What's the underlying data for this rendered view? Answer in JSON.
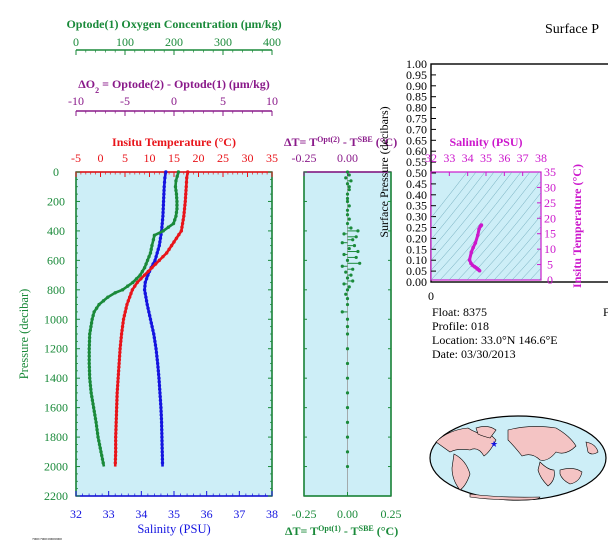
{
  "colors": {
    "green": "#1a8a3a",
    "purple": "#8a1a8a",
    "red": "#e8141a",
    "blue": "#1414e0",
    "magenta": "#cc18cc",
    "panel": "#cdeef7",
    "black": "#000000"
  },
  "header": {
    "title_partial": "Surface P"
  },
  "float_info": {
    "float": "Float:  8375",
    "profile": "Profile:  018",
    "location": "Location:  33.0°N  146.6°E",
    "date": "Date:  03/30/2013",
    "cut_letter": "F"
  },
  "footer": {
    "tiny_label": "7000/7900/00000000"
  },
  "chart_data": [
    {
      "type": "line",
      "panel": "main-profile",
      "ylabel": "Pressure (decibar)",
      "ylim": [
        2200,
        0
      ],
      "y_ticks": [
        "0",
        "200",
        "400",
        "600",
        "800",
        "1000",
        "1200",
        "1400",
        "1600",
        "1800",
        "2000",
        "2200"
      ],
      "axes": {
        "oxygen": {
          "label": "Optode(1) Oxygen Concentration (μm/kg)",
          "ticks": [
            "0",
            "100",
            "200",
            "300",
            "400"
          ],
          "range": [
            0,
            400
          ]
        },
        "delta_o2": {
          "label_parts": [
            "ΔO",
            "2",
            " = Optode(2) - Optode(1)     (μm/kg)"
          ],
          "ticks": [
            "-10",
            "-5",
            "0",
            "5",
            "10"
          ],
          "range": [
            -10,
            10
          ]
        },
        "temperature": {
          "label": "Insitu Temperature (°C)",
          "ticks": [
            "-5",
            "0",
            "5",
            "10",
            "15",
            "20",
            "25",
            "30",
            "35"
          ],
          "range": [
            -5,
            35
          ]
        },
        "salinity": {
          "label": "Salinity (PSU)",
          "ticks": [
            "32",
            "33",
            "34",
            "35",
            "36",
            "37",
            "38"
          ],
          "range": [
            32,
            38
          ]
        }
      },
      "series": [
        {
          "color_key": "blue",
          "axis": "salinity",
          "y": [
            0,
            40,
            100,
            200,
            300,
            400,
            500,
            600,
            650,
            700,
            750,
            800,
            900,
            1000,
            1100,
            1200,
            1300,
            1400,
            1500,
            1600,
            1700,
            1800,
            1900,
            2000
          ],
          "x": [
            34.75,
            34.72,
            34.7,
            34.68,
            34.66,
            34.62,
            34.55,
            34.42,
            34.3,
            34.2,
            34.12,
            34.1,
            34.18,
            34.28,
            34.38,
            34.45,
            34.5,
            34.54,
            34.57,
            34.6,
            34.62,
            34.63,
            34.64,
            34.65
          ]
        },
        {
          "color_key": "red",
          "axis": "temperature",
          "y": [
            0,
            40,
            100,
            200,
            300,
            400,
            450,
            500,
            550,
            600,
            650,
            700,
            750,
            800,
            900,
            1000,
            1100,
            1200,
            1300,
            1400,
            1500,
            1600,
            1700,
            1800,
            1900,
            2000
          ],
          "x": [
            17.8,
            17.6,
            17.5,
            17.3,
            17.0,
            16.5,
            15.5,
            14.5,
            13.5,
            12.0,
            10.5,
            9.0,
            7.5,
            6.5,
            5.4,
            4.7,
            4.3,
            4.0,
            3.8,
            3.6,
            3.4,
            3.3,
            3.2,
            3.1,
            3.1,
            3.0
          ]
        },
        {
          "color_key": "green",
          "axis": "oxygen",
          "y": [
            0,
            60,
            100,
            150,
            200,
            250,
            300,
            350,
            400,
            430,
            460,
            500,
            550,
            600,
            650,
            700,
            750,
            800,
            820,
            850,
            900,
            950,
            1000,
            1100,
            1200,
            1300,
            1400,
            1500,
            1600,
            1700,
            1800,
            1900,
            2000
          ],
          "x": [
            209,
            204,
            203,
            205,
            206,
            206,
            204,
            199,
            178,
            160,
            158,
            155,
            152,
            146,
            140,
            131,
            116,
            95,
            80,
            65,
            47,
            37,
            33,
            28,
            27,
            27,
            28,
            31,
            36,
            41,
            45,
            51,
            57
          ]
        }
      ]
    },
    {
      "type": "scatter",
      "panel": "delta-t",
      "title_parts": [
        "ΔT= T",
        "Opt(2)",
        " - T",
        "SBE",
        " (°C)"
      ],
      "xlabel_parts": [
        "ΔT= T",
        "Opt(1)",
        " - T",
        "SBE",
        "  (°C)"
      ],
      "xlim": [
        -0.25,
        0.25
      ],
      "x_ticks_top": [
        "-0.25",
        "0.00"
      ],
      "x_ticks_bottom": [
        "-0.25",
        "0.00",
        "0.25"
      ],
      "series": [
        {
          "color_key": "green",
          "y": [
            0,
            20,
            40,
            60,
            80,
            100,
            120,
            150,
            180,
            200,
            230,
            260,
            290,
            320,
            350,
            380,
            400,
            420,
            440,
            460,
            480,
            500,
            520,
            540,
            560,
            580,
            600,
            620,
            640,
            660,
            680,
            700,
            720,
            740,
            760,
            780,
            800,
            830,
            860,
            900,
            950,
            1000,
            1050,
            1100,
            1200,
            1300,
            1400,
            1500,
            1600,
            1700,
            1800,
            1900,
            2000
          ],
          "x": [
            0.0,
            0.01,
            -0.01,
            0.02,
            0.0,
            0.01,
            0.01,
            0.0,
            0.0,
            0.0,
            0.01,
            0.0,
            0.0,
            0.01,
            0.0,
            0.02,
            0.06,
            -0.02,
            0.05,
            0.03,
            -0.03,
            0.04,
            0.01,
            0.06,
            -0.02,
            0.05,
            0.0,
            0.07,
            -0.03,
            0.03,
            -0.01,
            0.02,
            0.0,
            0.03,
            -0.02,
            0.01,
            0.0,
            -0.01,
            0.0,
            0.0,
            -0.03,
            0.0,
            0.0,
            0.0,
            0.0,
            0.0,
            0.0,
            0.0,
            0.0,
            0.0,
            0.0,
            0.0,
            0.0
          ]
        }
      ]
    },
    {
      "type": "line",
      "panel": "ts-diagram",
      "title": "Salinity (PSU)",
      "x_ticks": [
        "32",
        "33",
        "34",
        "35",
        "36",
        "37",
        "38"
      ],
      "xlim": [
        32,
        38
      ],
      "ylabel": "Insitu Temperature (°C)",
      "y_ticks": [
        "0",
        "5",
        "10",
        "15",
        "20",
        "25",
        "30",
        "35"
      ],
      "ylim": [
        0,
        35
      ],
      "series": [
        {
          "color_key": "magenta",
          "salinity": [
            34.75,
            34.72,
            34.68,
            34.62,
            34.55,
            34.42,
            34.3,
            34.2,
            34.1,
            34.18,
            34.28,
            34.38,
            34.45,
            34.5,
            34.55,
            34.6,
            34.65
          ],
          "temperature": [
            17.8,
            17.6,
            17.3,
            16.5,
            14.5,
            12.0,
            10.5,
            9.0,
            6.5,
            5.4,
            4.7,
            4.3,
            4.0,
            3.8,
            3.5,
            3.3,
            3.0
          ]
        }
      ]
    },
    {
      "type": "line",
      "panel": "surface-pressure",
      "title_partial": "Surface P",
      "ylabel": "Surface Pressure (decibars)",
      "y_ticks": [
        "0.00",
        "0.05",
        "0.10",
        "0.15",
        "0.20",
        "0.25",
        "0.30",
        "0.35",
        "0.40",
        "0.45",
        "0.50",
        "0.55",
        "0.60",
        "0.65",
        "0.70",
        "0.75",
        "0.80",
        "0.85",
        "0.90",
        "0.95",
        "1.00"
      ],
      "ylim": [
        0,
        1
      ],
      "x_ticks": [
        "0"
      ]
    }
  ]
}
